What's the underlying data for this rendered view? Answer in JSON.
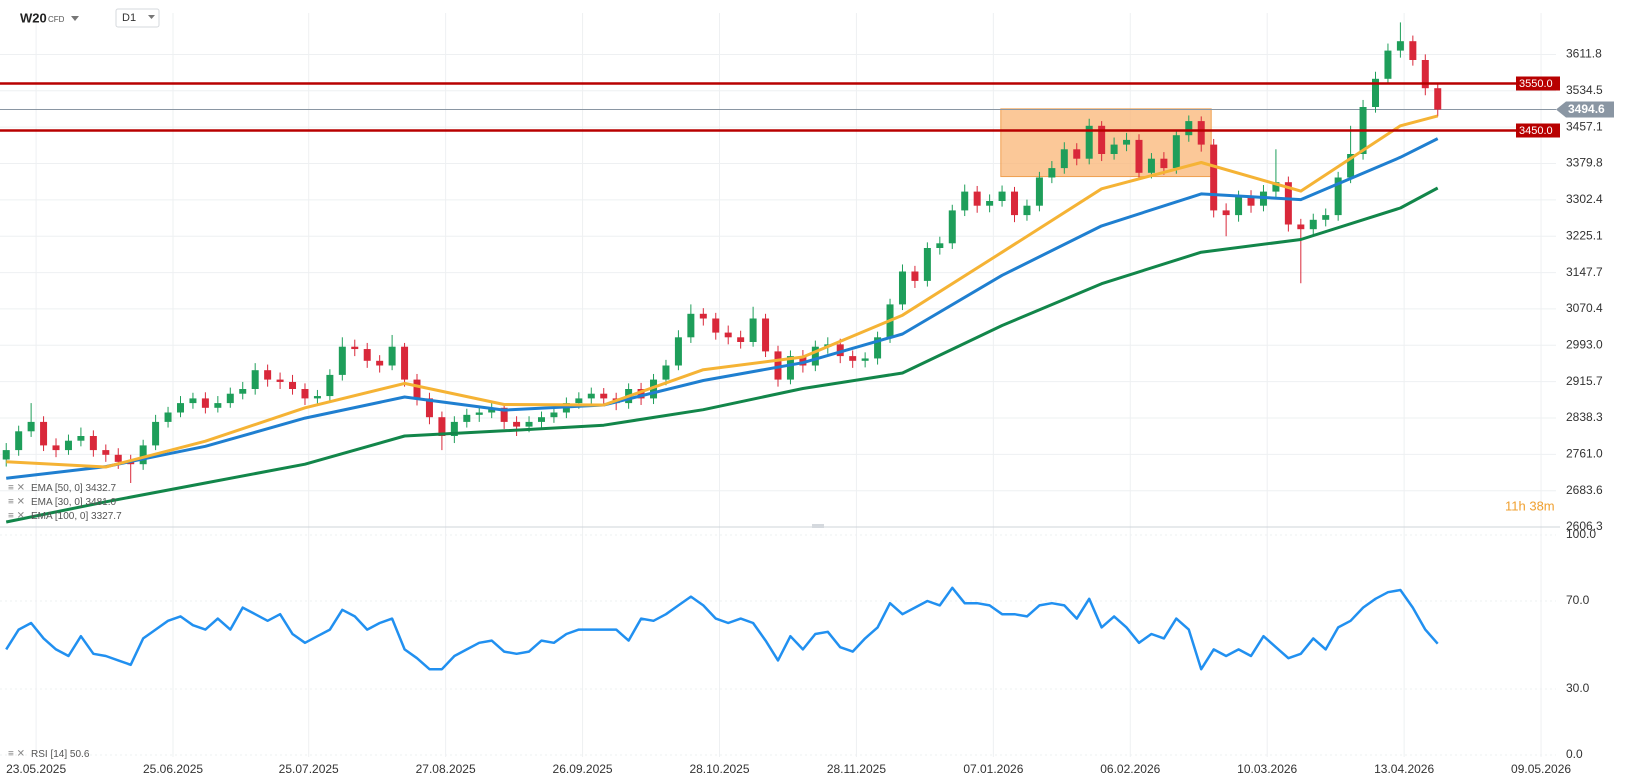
{
  "header": {
    "symbol": "W20",
    "instrument_type": "CFD",
    "timeframe": "D1"
  },
  "chart_data": [
    {
      "type": "candlestick",
      "xlim": [
        -0.5,
        124.5
      ],
      "xticks": [
        {
          "value": 2.4,
          "label": "23.05.2025"
        },
        {
          "value": 13.4,
          "label": "25.06.2025"
        },
        {
          "value": 24.3,
          "label": "25.07.2025"
        },
        {
          "value": 35.3,
          "label": "27.08.2025"
        },
        {
          "value": 46.3,
          "label": "26.09.2025"
        },
        {
          "value": 57.3,
          "label": "28.10.2025"
        },
        {
          "value": 68.3,
          "label": "28.11.2025"
        },
        {
          "value": 79.3,
          "label": "07.01.2026"
        },
        {
          "value": 90.3,
          "label": "06.02.2026"
        },
        {
          "value": 101.3,
          "label": "10.03.2026"
        },
        {
          "value": 112.3,
          "label": "13.04.2026"
        },
        {
          "value": 123.3,
          "label": "09.05.2026"
        }
      ],
      "ylim": [
        2600,
        3700
      ],
      "yticks": [
        3611.8,
        3534.5,
        3457.1,
        3379.8,
        3302.4,
        3225.1,
        3147.7,
        3070.4,
        {
          "value": 2993.0,
          "label": "2993.0"
        },
        2915.7,
        2838.3,
        {
          "value": 2761.0,
          "label": "2761.0"
        },
        2683.6,
        2606.3
      ],
      "grid": true,
      "candles": {
        "up_color": "#1e9e5a",
        "down_color": "#d9283a",
        "open": [
          2750,
          2770,
          2810,
          2830,
          2780,
          2770,
          2790,
          2800,
          2770,
          2760,
          2745,
          2740,
          2780,
          2830,
          2850,
          2870,
          2880,
          2860,
          2870,
          2890,
          2900,
          2940,
          2920,
          2915,
          2900,
          2880,
          2885,
          2930,
          2990,
          2985,
          2960,
          2950,
          2990,
          2920,
          2880,
          2840,
          2800,
          2830,
          2845,
          2850,
          2860,
          2830,
          2820,
          2830,
          2840,
          2850,
          2870,
          2880,
          2890,
          2880,
          2870,
          2900,
          2880,
          2920,
          2950,
          3010,
          3060,
          3050,
          3020,
          3010,
          3000,
          3050,
          2980,
          2920,
          2970,
          2950,
          2990,
          2995,
          2970,
          2960,
          2965,
          3010,
          3080,
          3150,
          3130,
          3200,
          3210,
          3280,
          3320,
          3290,
          3300,
          3320,
          3270,
          3290,
          3350,
          3370,
          3410,
          3390,
          3460,
          3400,
          3420,
          3430,
          3360,
          3390,
          3370,
          3440,
          3470,
          3420,
          3280,
          3270,
          3310,
          3290,
          3320,
          3340,
          3250,
          3240,
          3260,
          3270,
          3350,
          3400,
          3500,
          3560,
          3620,
          3640,
          3600,
          3540
        ],
        "high": [
          2785,
          2822,
          2870,
          2842,
          2795,
          2803,
          2818,
          2812,
          2782,
          2774,
          2760,
          2792,
          2845,
          2862,
          2885,
          2892,
          2893,
          2885,
          2903,
          2915,
          2955,
          2952,
          2935,
          2930,
          2912,
          2898,
          2942,
          3010,
          3005,
          2998,
          2972,
          3015,
          2998,
          2932,
          2892,
          2852,
          2842,
          2858,
          2864,
          2872,
          2870,
          2842,
          2842,
          2852,
          2862,
          2882,
          2893,
          2903,
          2902,
          2892,
          2912,
          2913,
          2932,
          2962,
          3025,
          3080,
          3072,
          3062,
          3035,
          3024,
          3075,
          3060,
          2992,
          2982,
          2983,
          3003,
          3010,
          3007,
          2982,
          2978,
          3022,
          3092,
          3165,
          3162,
          3212,
          3224,
          3292,
          3335,
          3332,
          3314,
          3333,
          3330,
          3303,
          3362,
          3385,
          3425,
          3423,
          3475,
          3470,
          3435,
          3445,
          3442,
          3402,
          3404,
          3452,
          3482,
          3480,
          3432,
          3295,
          3322,
          3323,
          3334,
          3410,
          3352,
          3262,
          3273,
          3284,
          3362,
          3460,
          3515,
          3575,
          3635,
          3680,
          3652,
          3612,
          3552
        ],
        "low": [
          2735,
          2758,
          2798,
          2768,
          2755,
          2760,
          2778,
          2756,
          2745,
          2730,
          2700,
          2728,
          2770,
          2818,
          2840,
          2858,
          2848,
          2850,
          2860,
          2878,
          2888,
          2905,
          2900,
          2888,
          2866,
          2865,
          2872,
          2918,
          2970,
          2945,
          2935,
          2940,
          2905,
          2865,
          2825,
          2770,
          2785,
          2818,
          2830,
          2838,
          2815,
          2800,
          2808,
          2818,
          2828,
          2838,
          2858,
          2866,
          2868,
          2855,
          2858,
          2866,
          2868,
          2908,
          2940,
          2998,
          3035,
          3005,
          2995,
          2986,
          2990,
          2968,
          2905,
          2910,
          2935,
          2938,
          2975,
          2955,
          2945,
          2946,
          2952,
          2998,
          3068,
          3115,
          3118,
          3186,
          3198,
          3268,
          3275,
          3276,
          3288,
          3255,
          3258,
          3278,
          3338,
          3358,
          3376,
          3378,
          3385,
          3388,
          3406,
          3345,
          3348,
          3356,
          3358,
          3426,
          3405,
          3265,
          3225,
          3256,
          3275,
          3278,
          3306,
          3235,
          3125,
          3228,
          3246,
          3258,
          3338,
          3388,
          3488,
          3548,
          3605,
          3588,
          3525,
          3480
        ],
        "close": [
          2770,
          2810,
          2830,
          2780,
          2770,
          2790,
          2800,
          2770,
          2760,
          2745,
          2740,
          2780,
          2830,
          2850,
          2870,
          2880,
          2860,
          2870,
          2890,
          2900,
          2940,
          2920,
          2915,
          2900,
          2880,
          2885,
          2930,
          2990,
          2985,
          2960,
          2950,
          2990,
          2920,
          2880,
          2840,
          2800,
          2830,
          2845,
          2850,
          2860,
          2830,
          2820,
          2830,
          2840,
          2850,
          2870,
          2880,
          2890,
          2880,
          2870,
          2900,
          2880,
          2920,
          2950,
          3010,
          3060,
          3050,
          3020,
          3010,
          3000,
          3050,
          2980,
          2920,
          2970,
          2950,
          2990,
          2995,
          2970,
          2960,
          2965,
          3010,
          3080,
          3150,
          3130,
          3200,
          3210,
          3280,
          3320,
          3290,
          3300,
          3320,
          3270,
          3290,
          3350,
          3370,
          3410,
          3390,
          3460,
          3400,
          3420,
          3430,
          3360,
          3390,
          3370,
          3440,
          3470,
          3420,
          3280,
          3270,
          3310,
          3290,
          3320,
          3340,
          3250,
          3240,
          3260,
          3270,
          3350,
          3400,
          3500,
          3560,
          3620,
          3640,
          3600,
          3540,
          3494.6
        ]
      },
      "series": [
        {
          "name": "EMA [50, 0]",
          "legend_label": "3432.7",
          "color": "#1f7fd0",
          "x": [
            0,
            8,
            16,
            24,
            32,
            40,
            48,
            56,
            64,
            72,
            80,
            88,
            96,
            104,
            112,
            115
          ],
          "values": [
            2710,
            2735,
            2778,
            2838,
            2883,
            2855,
            2866,
            2918,
            2956,
            3017,
            3142,
            3247,
            3315,
            3303,
            3393,
            3432.7
          ]
        },
        {
          "name": "EMA [30, 0]",
          "legend_label": "3481.0",
          "color": "#f5b335",
          "x": [
            0,
            8,
            16,
            24,
            32,
            40,
            48,
            56,
            64,
            72,
            80,
            88,
            96,
            104,
            112,
            115
          ],
          "values": [
            2745,
            2734,
            2789,
            2860,
            2912,
            2867,
            2866,
            2941,
            2968,
            3057,
            3191,
            3326,
            3382,
            3321,
            3460,
            3481.0
          ]
        },
        {
          "name": "EMA [100, 0]",
          "legend_label": "3327.7",
          "color": "#12864a",
          "x": [
            0,
            8,
            16,
            24,
            32,
            40,
            48,
            56,
            64,
            72,
            80,
            88,
            96,
            104,
            112,
            115
          ],
          "values": [
            2617,
            2660,
            2700,
            2740,
            2800,
            2811,
            2823,
            2856,
            2901,
            2934,
            3035,
            3124,
            3191,
            3218,
            3285,
            3327.7
          ]
        }
      ],
      "levels": [
        {
          "value": 3550.0,
          "label": "3550.0"
        },
        {
          "value": 3450.0,
          "label": "3450.0"
        }
      ],
      "level_color": "#b80000",
      "last_price_color": "#8a96a3",
      "zone": {
        "x": [
          79.9,
          96.8
        ],
        "y": [
          3352,
          3496
        ],
        "color": "#f9b675"
      },
      "countdown": "11h 38m"
    },
    {
      "type": "line",
      "name": "RSI [14]",
      "legend_label": "50.6",
      "color": "#2190f0",
      "ylim": [
        0,
        100
      ],
      "yticks": [
        {
          "value": 100,
          "label": "100.0"
        },
        {
          "value": 70,
          "label": "70.0"
        },
        {
          "value": 30,
          "label": "30.0"
        },
        {
          "value": 0,
          "label": "0.0"
        }
      ],
      "grid": true,
      "values": [
        48,
        57,
        60,
        53,
        48,
        45,
        54,
        46,
        45,
        43,
        41,
        53,
        57,
        61,
        63,
        59,
        57,
        62,
        57,
        67,
        64,
        61,
        64,
        55,
        51,
        54,
        57,
        66,
        63,
        57,
        60,
        62,
        48,
        44,
        39,
        39,
        45,
        48,
        51,
        52,
        47,
        46,
        47,
        52,
        51,
        55,
        57,
        57,
        57,
        57,
        52,
        62,
        61,
        64,
        68,
        72,
        68,
        62,
        60,
        62,
        60,
        52,
        43,
        54,
        48,
        55,
        56,
        49,
        47,
        53,
        58,
        69,
        64,
        67,
        70,
        68,
        76,
        69,
        69,
        68,
        64,
        64,
        63,
        68,
        69,
        68,
        62,
        71,
        58,
        63,
        58,
        51,
        55,
        53,
        62,
        57,
        39,
        48,
        45,
        48,
        45,
        54,
        49,
        44,
        46,
        53,
        48,
        58,
        61,
        67,
        71,
        74,
        75,
        67,
        57,
        50.6
      ]
    }
  ]
}
